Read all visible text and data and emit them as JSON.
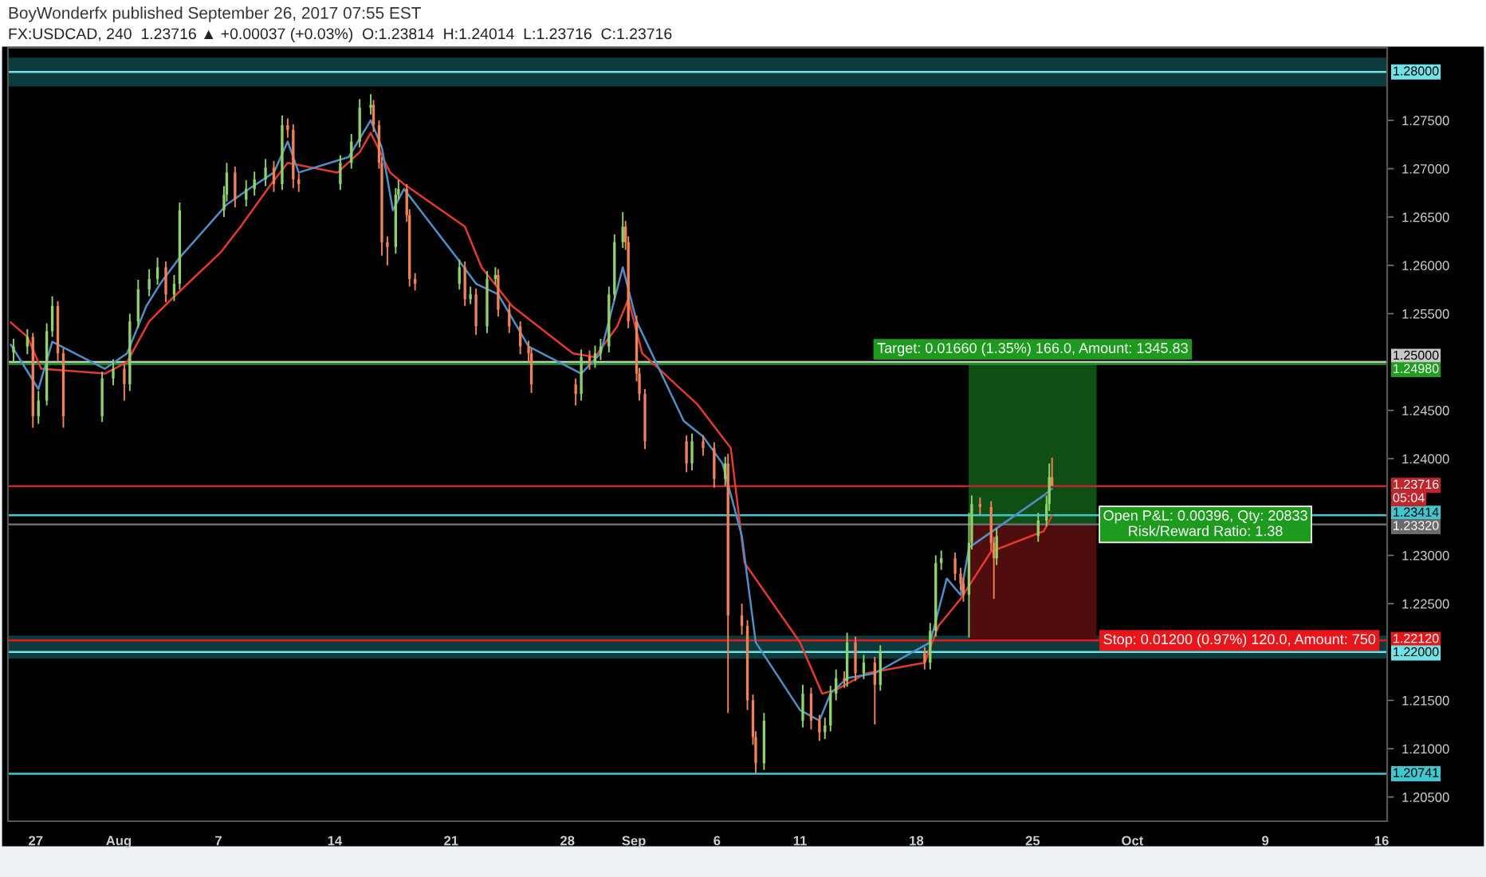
{
  "chart_data": {
    "type": "candlestick",
    "title": "BoyWonderfx published September 26, 2017 07:55 EST",
    "subtitle": "FX:USDCAD, 240  1.23716 ▲ +0.00037 (+0.03%)  O:1.23814  H:1.24014  L:1.23716  C:1.23716",
    "x": [
      "2017-07-25T16:00",
      "2017-07-26T12:00",
      "2017-07-26T20:00",
      "2017-07-27T04:00",
      "2017-07-27T16:00",
      "2017-07-28T00:00",
      "2017-07-28T08:00",
      "2017-07-28T16:00",
      "2017-07-31T00:00",
      "2017-07-31T16:00",
      "2017-08-01T08:00",
      "2017-08-01T16:00",
      "2017-08-02T04:00",
      "2017-08-02T20:00",
      "2017-08-03T08:00",
      "2017-08-03T20:00",
      "2017-08-04T08:00",
      "2017-08-04T16:00",
      "2017-08-07T08:00",
      "2017-08-07T12:00",
      "2017-08-08T00:00",
      "2017-08-08T16:00",
      "2017-08-09T04:00",
      "2017-08-09T20:00",
      "2017-08-10T08:00",
      "2017-08-10T20:00",
      "2017-08-11T04:00",
      "2017-08-11T12:00",
      "2017-08-11T20:00",
      "2017-08-14T08:00",
      "2017-08-15T00:00",
      "2017-08-15T12:00",
      "2017-08-16T04:00",
      "2017-08-16T08:00",
      "2017-08-16T16:00",
      "2017-08-16T20:00",
      "2017-08-17T04:00",
      "2017-08-17T16:00",
      "2017-08-17T20:00",
      "2017-08-18T08:00",
      "2017-08-18T12:00",
      "2017-08-18T20:00",
      "2017-08-21T12:00",
      "2017-08-21T20:00",
      "2017-08-22T04:00",
      "2017-08-22T12:00",
      "2017-08-23T04:00",
      "2017-08-23T16:00",
      "2017-08-23T20:00",
      "2017-08-24T12:00",
      "2017-08-25T04:00",
      "2017-08-25T16:00",
      "2017-08-25T20:00",
      "2017-08-28T12:00",
      "2017-08-28T20:00",
      "2017-08-29T08:00",
      "2017-08-29T16:00",
      "2017-08-30T00:00",
      "2017-08-30T12:00",
      "2017-08-30T20:00",
      "2017-08-31T08:00",
      "2017-08-31T12:00",
      "2017-08-31T16:00",
      "2017-09-01T04:00",
      "2017-09-01T08:00",
      "2017-09-01T16:00",
      "2017-09-04T04:00",
      "2017-09-04T12:00",
      "2017-09-05T04:00",
      "2017-09-05T20:00",
      "2017-09-06T12:00",
      "2017-09-06T16:00",
      "2017-09-07T12:00",
      "2017-09-07T20:00",
      "2017-09-08T04:00",
      "2017-09-08T08:00",
      "2017-09-08T20:00",
      "2017-09-11T04:00",
      "2017-09-11T16:00",
      "2017-09-12T04:00",
      "2017-09-12T12:00",
      "2017-09-12T20:00",
      "2017-09-13T04:00",
      "2017-09-13T16:00",
      "2017-09-13T20:00",
      "2017-09-14T08:00",
      "2017-09-14T20:00",
      "2017-09-15T12:00",
      "2017-09-15T20:00",
      "2017-09-18T12:00",
      "2017-09-18T20:00",
      "2017-09-19T04:00",
      "2017-09-19T12:00",
      "2017-09-20T08:00",
      "2017-09-20T16:00",
      "2017-09-20T20:00",
      "2017-09-21T04:00",
      "2017-09-21T08:00",
      "2017-09-21T20:00",
      "2017-09-22T12:00",
      "2017-09-22T16:00",
      "2017-09-22T20:00",
      "2017-09-25T08:00",
      "2017-09-25T20:00",
      "2017-09-26T00:00",
      "2017-09-26T04:00"
    ],
    "ohlc": [
      [
        1.251,
        1.2524,
        1.25,
        1.2516
      ],
      [
        1.2516,
        1.2534,
        1.2508,
        1.2526
      ],
      [
        1.2526,
        1.253,
        1.2432,
        1.2444
      ],
      [
        1.2444,
        1.247,
        1.2436,
        1.246
      ],
      [
        1.246,
        1.254,
        1.2455,
        1.2532
      ],
      [
        1.2532,
        1.2568,
        1.2526,
        1.2558
      ],
      [
        1.2558,
        1.2563,
        1.25,
        1.2509
      ],
      [
        1.2509,
        1.2514,
        1.2432,
        1.2444
      ],
      [
        1.2444,
        1.249,
        1.2438,
        1.2483
      ],
      [
        1.2483,
        1.2503,
        1.2476,
        1.2493
      ],
      [
        1.2493,
        1.2498,
        1.246,
        1.2477
      ],
      [
        1.2477,
        1.255,
        1.247,
        1.2542
      ],
      [
        1.2542,
        1.2585,
        1.2535,
        1.2575
      ],
      [
        1.2575,
        1.2596,
        1.2568,
        1.2586
      ],
      [
        1.2586,
        1.2608,
        1.258,
        1.2598
      ],
      [
        1.2598,
        1.2604,
        1.2562,
        1.257
      ],
      [
        1.257,
        1.259,
        1.2563,
        1.2581
      ],
      [
        1.2581,
        1.2665,
        1.2575,
        1.2657
      ],
      [
        1.2657,
        1.2682,
        1.265,
        1.2673
      ],
      [
        1.2673,
        1.2706,
        1.2666,
        1.2696
      ],
      [
        1.2696,
        1.2702,
        1.266,
        1.2668
      ],
      [
        1.2668,
        1.2688,
        1.2661,
        1.2679
      ],
      [
        1.2679,
        1.2697,
        1.2672,
        1.2689
      ],
      [
        1.2689,
        1.271,
        1.2682,
        1.2701
      ],
      [
        1.2701,
        1.2708,
        1.2676,
        1.2684
      ],
      [
        1.2684,
        1.2755,
        1.2678,
        1.2745
      ],
      [
        1.2745,
        1.2752,
        1.2732,
        1.274
      ],
      [
        1.274,
        1.2746,
        1.268,
        1.2689
      ],
      [
        1.2689,
        1.2695,
        1.2676,
        1.2684
      ],
      [
        1.2684,
        1.2714,
        1.2678,
        1.2706
      ],
      [
        1.2706,
        1.2736,
        1.27,
        1.2728
      ],
      [
        1.2728,
        1.2772,
        1.2722,
        1.2763
      ],
      [
        1.2763,
        1.2777,
        1.2756,
        1.2766
      ],
      [
        1.2766,
        1.2771,
        1.2738,
        1.2745
      ],
      [
        1.2745,
        1.275,
        1.27,
        1.2706
      ],
      [
        1.2706,
        1.2712,
        1.261,
        1.2624
      ],
      [
        1.2624,
        1.263,
        1.26,
        1.2619
      ],
      [
        1.2619,
        1.268,
        1.2612,
        1.2673
      ],
      [
        1.2673,
        1.2688,
        1.2668,
        1.2679
      ],
      [
        1.2679,
        1.2684,
        1.2645,
        1.2652
      ],
      [
        1.2652,
        1.2658,
        1.2578,
        1.2586
      ],
      [
        1.2586,
        1.2592,
        1.2574,
        1.2581
      ],
      [
        1.2581,
        1.2606,
        1.2575,
        1.2598
      ],
      [
        1.2598,
        1.2604,
        1.2558,
        1.2565
      ],
      [
        1.2565,
        1.2578,
        1.256,
        1.257
      ],
      [
        1.257,
        1.2576,
        1.2528,
        1.2537
      ],
      [
        1.2537,
        1.2594,
        1.253,
        1.2586
      ],
      [
        1.2586,
        1.2598,
        1.258,
        1.259
      ],
      [
        1.259,
        1.2596,
        1.2547,
        1.2554
      ],
      [
        1.2554,
        1.256,
        1.253,
        1.2537
      ],
      [
        1.2537,
        1.2542,
        1.2508,
        1.2516
      ],
      [
        1.2516,
        1.2522,
        1.25,
        1.2509
      ],
      [
        1.2509,
        1.2514,
        1.2468,
        1.2477
      ],
      [
        1.2477,
        1.2483,
        1.2455,
        1.2467
      ],
      [
        1.2467,
        1.2513,
        1.246,
        1.2505
      ],
      [
        1.2505,
        1.2512,
        1.2492,
        1.25
      ],
      [
        1.25,
        1.2517,
        1.2494,
        1.2509
      ],
      [
        1.2509,
        1.2524,
        1.2502,
        1.2516
      ],
      [
        1.2516,
        1.2578,
        1.251,
        1.257
      ],
      [
        1.257,
        1.2632,
        1.2564,
        1.2624
      ],
      [
        1.2624,
        1.2655,
        1.2618,
        1.264
      ],
      [
        1.264,
        1.2646,
        1.2616,
        1.2624
      ],
      [
        1.2624,
        1.263,
        1.2535,
        1.2542
      ],
      [
        1.2542,
        1.2548,
        1.248,
        1.2488
      ],
      [
        1.2488,
        1.2494,
        1.246,
        1.2467
      ],
      [
        1.2467,
        1.2472,
        1.241,
        1.2418
      ],
      [
        1.2418,
        1.2424,
        1.2386,
        1.2395
      ],
      [
        1.2395,
        1.2426,
        1.2388,
        1.2418
      ],
      [
        1.2418,
        1.2424,
        1.2403,
        1.2411
      ],
      [
        1.2411,
        1.2417,
        1.237,
        1.2379
      ],
      [
        1.2379,
        1.2402,
        1.2372,
        1.2395
      ],
      [
        1.2395,
        1.2405,
        1.2137,
        1.2238
      ],
      [
        1.2238,
        1.225,
        1.2218,
        1.2227
      ],
      [
        1.2227,
        1.2233,
        1.214,
        1.215
      ],
      [
        1.215,
        1.2156,
        1.2104,
        1.2112
      ],
      [
        1.2112,
        1.2118,
        1.2074,
        1.2085
      ],
      [
        1.2085,
        1.2137,
        1.2078,
        1.2129
      ],
      [
        1.2129,
        1.2166,
        1.2122,
        1.2157
      ],
      [
        1.2157,
        1.2163,
        1.212,
        1.2129
      ],
      [
        1.2129,
        1.2135,
        1.2108,
        1.2117
      ],
      [
        1.2117,
        1.2132,
        1.211,
        1.2124
      ],
      [
        1.2124,
        1.2165,
        1.2118,
        1.2157
      ],
      [
        1.2157,
        1.2182,
        1.215,
        1.2173
      ],
      [
        1.2173,
        1.218,
        1.2163,
        1.217
      ],
      [
        1.217,
        1.222,
        1.2164,
        1.221
      ],
      [
        1.221,
        1.2216,
        1.217,
        1.2178
      ],
      [
        1.2178,
        1.2197,
        1.2172,
        1.2189
      ],
      [
        1.2189,
        1.2195,
        1.2125,
        1.2166
      ],
      [
        1.2166,
        1.2207,
        1.216,
        1.2199
      ],
      [
        1.2199,
        1.2205,
        1.2182,
        1.2189
      ],
      [
        1.2189,
        1.223,
        1.2182,
        1.2222
      ],
      [
        1.2222,
        1.23,
        1.2216,
        1.2292
      ],
      [
        1.2292,
        1.2305,
        1.2285,
        1.2297
      ],
      [
        1.2297,
        1.2303,
        1.2274,
        1.2281
      ],
      [
        1.2281,
        1.2287,
        1.2264,
        1.2271
      ],
      [
        1.2271,
        1.2277,
        1.2252,
        1.2259
      ],
      [
        1.2259,
        1.2344,
        1.2215,
        1.2313
      ],
      [
        1.2313,
        1.2362,
        1.2306,
        1.2353
      ],
      [
        1.2353,
        1.236,
        1.2342,
        1.235
      ],
      [
        1.235,
        1.2356,
        1.2305,
        1.2313
      ],
      [
        1.2313,
        1.2319,
        1.2255,
        1.2297
      ],
      [
        1.2297,
        1.2328,
        1.229,
        1.232
      ],
      [
        1.232,
        1.2344,
        1.2314,
        1.2336
      ],
      [
        1.2336,
        1.2362,
        1.233,
        1.2353
      ],
      [
        1.2353,
        1.2395,
        1.2346,
        1.2381
      ],
      [
        1.2381,
        1.2401,
        1.2372,
        1.2372
      ]
    ],
    "colors": [
      "#8fd16a",
      "#8fd16a",
      "#f0825a",
      "#8fd16a",
      "#8fd16a",
      "#8fd16a",
      "#f0825a",
      "#f0825a",
      "#8fd16a",
      "#8fd16a",
      "#f0825a",
      "#8fd16a",
      "#8fd16a",
      "#8fd16a",
      "#8fd16a",
      "#f0825a",
      "#8fd16a",
      "#8fd16a",
      "#8fd16a",
      "#8fd16a",
      "#f0825a",
      "#8fd16a",
      "#8fd16a",
      "#8fd16a",
      "#f0825a",
      "#8fd16a",
      "#f0825a",
      "#f0825a",
      "#f0825a",
      "#8fd16a",
      "#8fd16a",
      "#8fd16a",
      "#8fd16a",
      "#f0825a",
      "#f0825a",
      "#f0825a",
      "#f0825a",
      "#8fd16a",
      "#8fd16a",
      "#f0825a",
      "#f0825a",
      "#f0825a",
      "#8fd16a",
      "#f0825a",
      "#8fd16a",
      "#f0825a",
      "#8fd16a",
      "#8fd16a",
      "#f0825a",
      "#f0825a",
      "#f0825a",
      "#f0825a",
      "#f0825a",
      "#f0825a",
      "#8fd16a",
      "#f0825a",
      "#8fd16a",
      "#8fd16a",
      "#8fd16a",
      "#8fd16a",
      "#8fd16a",
      "#f0825a",
      "#f0825a",
      "#f0825a",
      "#f0825a",
      "#f0825a",
      "#f0825a",
      "#8fd16a",
      "#f0825a",
      "#f0825a",
      "#8fd16a",
      "#f0825a",
      "#f0825a",
      "#f0825a",
      "#f0825a",
      "#f0825a",
      "#8fd16a",
      "#8fd16a",
      "#f0825a",
      "#f0825a",
      "#8fd16a",
      "#8fd16a",
      "#8fd16a",
      "#f0825a",
      "#8fd16a",
      "#f0825a",
      "#8fd16a",
      "#f0825a",
      "#8fd16a",
      "#f0825a",
      "#8fd16a",
      "#8fd16a",
      "#8fd16a",
      "#f0825a",
      "#f0825a",
      "#f0825a",
      "#8fd16a",
      "#8fd16a",
      "#f0825a",
      "#f0825a",
      "#f0825a",
      "#8fd16a",
      "#8fd16a",
      "#8fd16a",
      "#8fd16a",
      "#f0825a"
    ],
    "series": [
      {
        "type": "line",
        "color": "#e23a2e",
        "x": [
          "2017-07-25T12:00",
          "2017-07-26T12:00",
          "2017-07-27T08:00",
          "2017-07-31T04:00",
          "2017-08-01T12:00",
          "2017-08-02T20:00",
          "2017-08-04T04:00",
          "2017-08-07T04:00",
          "2017-08-08T08:00",
          "2017-08-10T04:00",
          "2017-08-11T04:00",
          "2017-08-14T04:00",
          "2017-08-15T12:00",
          "2017-08-16T04:00",
          "2017-08-17T08:00",
          "2017-08-18T04:00",
          "2017-08-21T20:00",
          "2017-08-22T20:00",
          "2017-08-24T16:00",
          "2017-08-28T08:00",
          "2017-08-29T16:00",
          "2017-08-31T00:00",
          "2017-08-31T16:00",
          "2017-09-01T12:00",
          "2017-09-04T20:00",
          "2017-09-06T20:00",
          "2017-09-07T16:00",
          "2017-09-11T00:00",
          "2017-09-12T08:00",
          "2017-09-13T04:00",
          "2017-09-15T00:00",
          "2017-09-18T12:00",
          "2017-09-19T08:00",
          "2017-09-20T16:00",
          "2017-09-22T12:00",
          "2017-09-25T16:00",
          "2017-09-26T04:00"
        ],
        "values": [
          1.2541,
          1.2526,
          1.2493,
          1.2488,
          1.25,
          1.2542,
          1.2565,
          1.2614,
          1.264,
          1.2684,
          1.2706,
          1.2696,
          1.2717,
          1.2737,
          1.2696,
          1.2684,
          1.264,
          1.2598,
          1.2558,
          1.2509,
          1.2505,
          1.2537,
          1.2565,
          1.2509,
          1.2456,
          1.2411,
          1.2292,
          1.221,
          1.2157,
          1.2161,
          1.2178,
          1.2189,
          1.2227,
          1.2255,
          1.2304,
          1.2325,
          1.2341
        ]
      },
      {
        "type": "line",
        "color": "#4f8fc6",
        "x": [
          "2017-07-25T12:00",
          "2017-07-27T04:00",
          "2017-07-28T00:00",
          "2017-07-31T04:00",
          "2017-08-01T12:00",
          "2017-08-02T16:00",
          "2017-08-03T12:00",
          "2017-08-04T16:00",
          "2017-08-07T12:00",
          "2017-08-08T20:00",
          "2017-08-10T08:00",
          "2017-08-11T04:00",
          "2017-08-11T20:00",
          "2017-08-14T20:00",
          "2017-08-16T04:00",
          "2017-08-16T20:00",
          "2017-08-17T12:00",
          "2017-08-18T04:00",
          "2017-08-21T08:00",
          "2017-08-22T12:00",
          "2017-08-23T20:00",
          "2017-08-25T16:00",
          "2017-08-28T20:00",
          "2017-08-30T00:00",
          "2017-08-31T08:00",
          "2017-09-01T04:00",
          "2017-09-04T00:00",
          "2017-09-05T04:00",
          "2017-09-06T08:00",
          "2017-09-07T12:00",
          "2017-09-08T08:00",
          "2017-09-11T00:00",
          "2017-09-12T04:00",
          "2017-09-12T20:00",
          "2017-09-13T20:00",
          "2017-09-15T12:00",
          "2017-09-18T20:00",
          "2017-09-19T20:00",
          "2017-09-20T16:00",
          "2017-09-21T04:00",
          "2017-09-25T16:00",
          "2017-09-26T04:00"
        ],
        "values": [
          1.2518,
          1.2472,
          1.2521,
          1.2493,
          1.2509,
          1.2558,
          1.2581,
          1.2608,
          1.2663,
          1.2679,
          1.2696,
          1.2728,
          1.2696,
          1.2712,
          1.275,
          1.2722,
          1.2657,
          1.2679,
          1.2608,
          1.2581,
          1.257,
          1.2516,
          1.2488,
          1.2509,
          1.2598,
          1.2542,
          1.2439,
          1.2423,
          1.2395,
          1.232,
          1.221,
          1.214,
          1.2129,
          1.2157,
          1.2173,
          1.2178,
          1.221,
          1.2276,
          1.2259,
          1.2308,
          1.2362,
          1.2369
        ]
      },
      {
        "type": "bar",
        "color": "#0f4f14",
        "x": [
          "2017-09-25T00:00"
        ],
        "base": [
          1.2332
        ],
        "values": [
          0.0166
        ]
      },
      {
        "type": "bar",
        "color": "#4f0d0d",
        "x": [
          "2017-09-25T00:00"
        ],
        "base": [
          1.2212
        ],
        "values": [
          0.012
        ]
      }
    ],
    "xlim": [
      "2017-07-25T08:00",
      "2017-10-16T08:00"
    ],
    "xticks": [
      {
        "value": "2017-07-27",
        "label": "27"
      },
      {
        "value": "2017-08-01",
        "label": "Aug"
      },
      {
        "value": "2017-08-07",
        "label": "7"
      },
      {
        "value": "2017-08-14",
        "label": "14"
      },
      {
        "value": "2017-08-21",
        "label": "21"
      },
      {
        "value": "2017-08-28",
        "label": "28"
      },
      {
        "value": "2017-09-01",
        "label": "Sep"
      },
      {
        "value": "2017-09-06",
        "label": "6"
      },
      {
        "value": "2017-09-11",
        "label": "11"
      },
      {
        "value": "2017-09-18",
        "label": "18"
      },
      {
        "value": "2017-09-25",
        "label": "25"
      },
      {
        "value": "2017-10-01",
        "label": "Oct"
      },
      {
        "value": "2017-10-09",
        "label": "9"
      },
      {
        "value": "2017-10-16",
        "label": "16"
      }
    ],
    "ylim": [
      1.2025,
      1.2825
    ],
    "yticks": [
      {
        "value": 1.205,
        "label": "1.20500"
      },
      {
        "value": 1.21,
        "label": "1.21000"
      },
      {
        "value": 1.215,
        "label": "1.21500"
      },
      {
        "value": 1.225,
        "label": "1.22500"
      },
      {
        "value": 1.23,
        "label": "1.23000"
      },
      {
        "value": 1.24,
        "label": "1.24000"
      },
      {
        "value": 1.245,
        "label": "1.24500"
      },
      {
        "value": 1.255,
        "label": "1.25500"
      },
      {
        "value": 1.26,
        "label": "1.26000"
      },
      {
        "value": 1.265,
        "label": "1.26500"
      },
      {
        "value": 1.27,
        "label": "1.27000"
      },
      {
        "value": 1.275,
        "label": "1.27500"
      }
    ],
    "bands": [
      {
        "axis": "y",
        "from": 1.2785,
        "to": 1.2815,
        "color": "#0d3a3a"
      },
      {
        "axis": "y",
        "from": 1.2193,
        "to": 1.2217,
        "color": "#0d3a3a"
      }
    ],
    "ref_lines": [
      {
        "axis": "y",
        "value": 1.28,
        "label": "1.28000",
        "color": "#6fe3e8"
      },
      {
        "axis": "y",
        "value": 1.25,
        "label": "1.25000",
        "color": "#c8c8c8"
      },
      {
        "axis": "y",
        "value": 1.2498,
        "label": "1.24980",
        "color": "#1f9e1f"
      },
      {
        "axis": "y",
        "value": 1.23716,
        "label": "1.23716",
        "color": "#c0262b"
      },
      {
        "axis": "y",
        "value": 1.23414,
        "label": "1.23414",
        "color": "#3fc7d0"
      },
      {
        "axis": "y",
        "value": 1.2332,
        "label": "1.23320",
        "color": "#6b6b6b"
      },
      {
        "axis": "y",
        "value": 1.2212,
        "label": "1.22120",
        "color": "#e8161b"
      },
      {
        "axis": "y",
        "value": 1.22,
        "label": "1.22000",
        "color": "#6fe3e8"
      },
      {
        "axis": "y",
        "value": 1.20741,
        "label": "1.20741",
        "color": "#3fc7d0"
      }
    ],
    "annotations": [
      {
        "text": "Target: 0.01660 (1.35%) 166.0, Amount: 1345.83",
        "x": "2017-09-25T00:00",
        "y": 1.2498
      },
      {
        "text": "Open P&L: 0.00396, Qty: 20833\nRisk/Reward Ratio: 1.38",
        "x": "2017-09-28T20:00",
        "y": 1.2332
      },
      {
        "text": "Stop: 0.01200 (0.97%) 120.0, Amount: 750",
        "x": "2017-09-28T20:00",
        "y": 1.2212
      },
      "05:04"
    ]
  }
}
